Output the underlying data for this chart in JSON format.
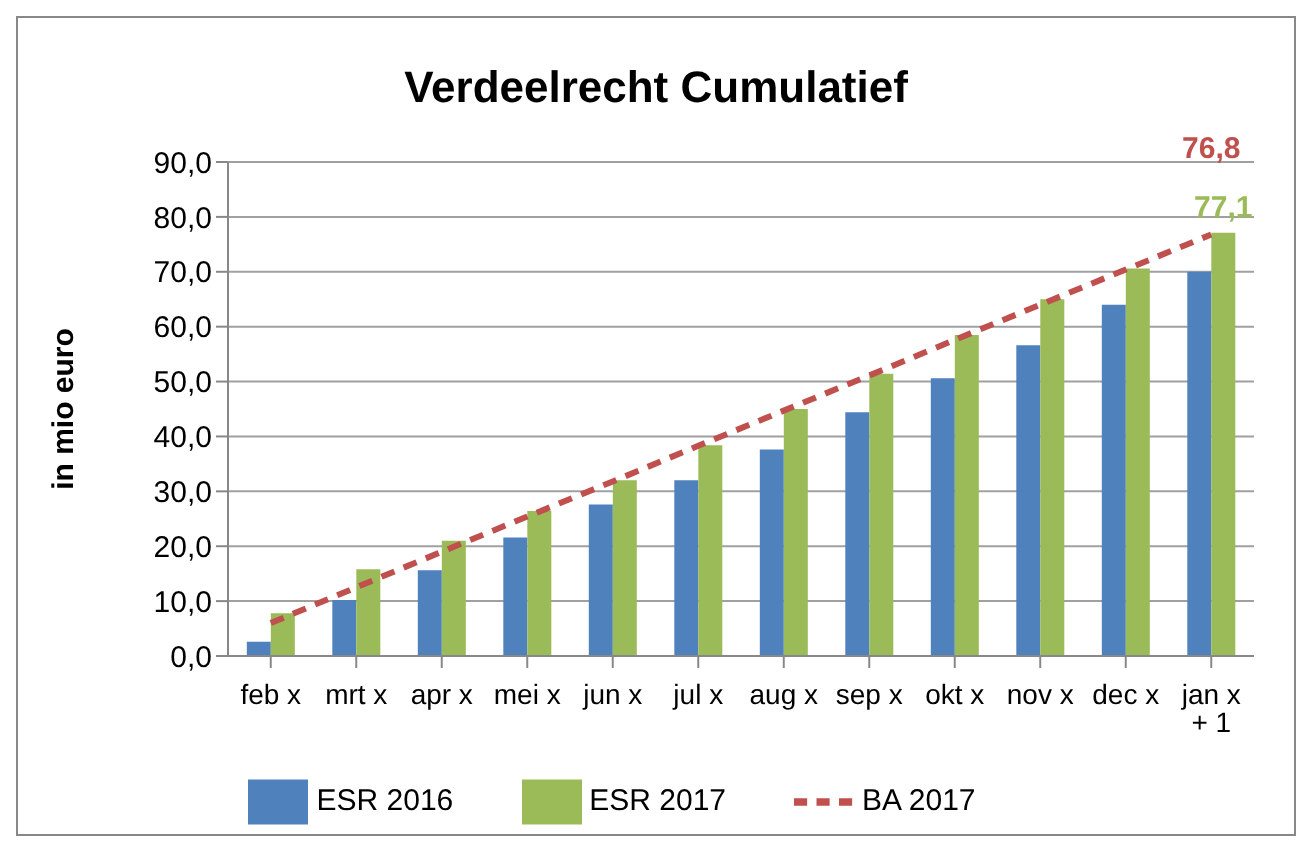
{
  "chart_data": {
    "type": "bar",
    "title": "Verdeelrecht Cumulatief",
    "ylabel": "in mio euro",
    "categories": [
      "feb x",
      "mrt x",
      "apr x",
      "mei x",
      "jun x",
      "jul x",
      "aug x",
      "sep x",
      "okt x",
      "nov x",
      "dec x",
      "jan x + 1"
    ],
    "series": [
      {
        "name": "ESR 2016",
        "color": "#4f81bd",
        "values": [
          2.6,
          10.2,
          15.6,
          21.6,
          27.6,
          32.0,
          37.6,
          44.4,
          50.6,
          56.6,
          64.0,
          70.0
        ]
      },
      {
        "name": "ESR 2017",
        "color": "#9bbb59",
        "values": [
          7.8,
          15.8,
          21.0,
          26.4,
          32.0,
          38.4,
          45.0,
          51.4,
          58.5,
          65.0,
          70.6,
          77.1
        ],
        "value_labels": [
          null,
          null,
          null,
          null,
          null,
          null,
          null,
          null,
          null,
          null,
          null,
          "77,1"
        ]
      },
      {
        "name": "BA 2017",
        "type": "line",
        "color": "#c0504d",
        "line_style": "dashed",
        "marker": "none",
        "values": [
          6.0,
          12.5,
          19.0,
          25.4,
          31.8,
          38.3,
          44.7,
          51.1,
          57.6,
          64.0,
          70.4,
          76.8
        ],
        "value_labels": [
          null,
          null,
          null,
          null,
          null,
          null,
          null,
          null,
          null,
          null,
          null,
          "76,8"
        ]
      }
    ],
    "ylim": [
      0,
      90
    ],
    "yticks": [
      {
        "value": 0,
        "label": "0,0"
      },
      {
        "value": 10,
        "label": "10,0"
      },
      {
        "value": 20,
        "label": "20,0"
      },
      {
        "value": 30,
        "label": "30,0"
      },
      {
        "value": 40,
        "label": "40,0"
      },
      {
        "value": 50,
        "label": "50,0"
      },
      {
        "value": 60,
        "label": "60,0"
      },
      {
        "value": 70,
        "label": "70,0"
      },
      {
        "value": 80,
        "label": "80,0"
      },
      {
        "value": 90,
        "label": "90,0"
      }
    ],
    "grid": "y",
    "legend": "bottom"
  }
}
